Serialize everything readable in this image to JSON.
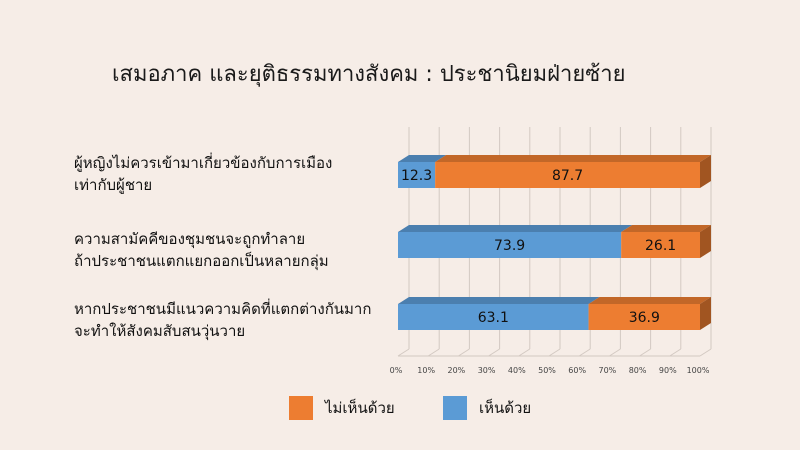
{
  "chart_data": {
    "type": "bar",
    "orientation": "horizontal",
    "stacked": true,
    "percent_stacked": true,
    "title": "เสมอภาค และยุติธรรมทางสังคม : ประชานิยมฝ่ายซ้าย",
    "categories": [
      [
        "ผู้หญิงไม่ควรเข้ามาเกี่ยวข้องกับการเมือง",
        "เท่ากับผู้ชาย"
      ],
      [
        "ความสามัคคีของชุมชนจะถูกทำลาย",
        "ถ้าประชาชนแตกแยกออกเป็นหลายกลุ่ม"
      ],
      [
        "หากประชาชนมีแนวความคิดที่แตกต่างกันมาก",
        "จะทำให้สังคมสับสนวุ่นวาย"
      ]
    ],
    "series": [
      {
        "name": "เห็นด้วย",
        "color": "#5b9bd5",
        "values": [
          12.3,
          73.9,
          63.1
        ]
      },
      {
        "name": "ไม่เห็นด้วย",
        "color": "#ed7d31",
        "values": [
          87.7,
          26.1,
          36.9
        ]
      }
    ],
    "x_ticks": [
      "0%",
      "10%",
      "20%",
      "30%",
      "40%",
      "50%",
      "60%",
      "70%",
      "80%",
      "90%",
      "100%"
    ],
    "xlim": [
      0,
      100
    ],
    "grid": true,
    "legend_position": "bottom",
    "legend_order": [
      "ไม่เห็นด้วย",
      "เห็นด้วย"
    ],
    "style": "3d"
  }
}
